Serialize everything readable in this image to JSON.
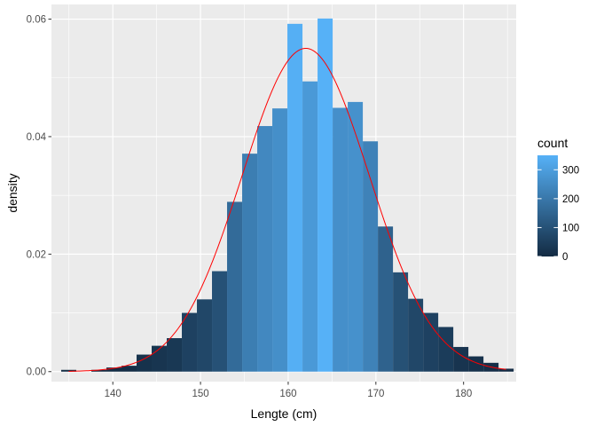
{
  "chart_data": {
    "type": "bar",
    "xlabel": "Lengte (cm)",
    "ylabel": "density",
    "xlim": [
      133,
      186
    ],
    "ylim": [
      -0.0017,
      0.0625
    ],
    "x_ticks": [
      140,
      150,
      160,
      170,
      180
    ],
    "y_ticks": [
      0.0,
      0.02,
      0.04,
      0.06
    ],
    "y_tick_labels": [
      "0.00",
      "0.02",
      "0.04",
      "0.06"
    ],
    "grid": true,
    "background_color": "#ebebeb",
    "bin_width": 1.72,
    "bins": [
      {
        "x": 134.97,
        "density": 0.0003,
        "count": 2
      },
      {
        "x": 138.41,
        "density": 0.0003,
        "count": 2
      },
      {
        "x": 140.13,
        "density": 0.0007,
        "count": 4
      },
      {
        "x": 141.85,
        "density": 0.001,
        "count": 6
      },
      {
        "x": 143.57,
        "density": 0.0029,
        "count": 17
      },
      {
        "x": 145.29,
        "density": 0.0044,
        "count": 26
      },
      {
        "x": 147.01,
        "density": 0.0057,
        "count": 33
      },
      {
        "x": 148.73,
        "density": 0.01,
        "count": 58
      },
      {
        "x": 150.45,
        "density": 0.0123,
        "count": 72
      },
      {
        "x": 152.17,
        "density": 0.0171,
        "count": 100
      },
      {
        "x": 153.89,
        "density": 0.0289,
        "count": 168
      },
      {
        "x": 155.61,
        "density": 0.0371,
        "count": 216
      },
      {
        "x": 157.33,
        "density": 0.0418,
        "count": 243
      },
      {
        "x": 159.05,
        "density": 0.0448,
        "count": 261
      },
      {
        "x": 160.77,
        "density": 0.0592,
        "count": 345
      },
      {
        "x": 162.49,
        "density": 0.0494,
        "count": 288
      },
      {
        "x": 164.21,
        "density": 0.0601,
        "count": 350
      },
      {
        "x": 165.93,
        "density": 0.0449,
        "count": 262
      },
      {
        "x": 167.65,
        "density": 0.0459,
        "count": 267
      },
      {
        "x": 169.37,
        "density": 0.0392,
        "count": 228
      },
      {
        "x": 171.09,
        "density": 0.0247,
        "count": 144
      },
      {
        "x": 172.81,
        "density": 0.0169,
        "count": 98
      },
      {
        "x": 174.53,
        "density": 0.0124,
        "count": 72
      },
      {
        "x": 176.25,
        "density": 0.01,
        "count": 58
      },
      {
        "x": 177.97,
        "density": 0.0076,
        "count": 44
      },
      {
        "x": 179.69,
        "density": 0.0042,
        "count": 24
      },
      {
        "x": 181.41,
        "density": 0.0026,
        "count": 15
      },
      {
        "x": 183.13,
        "density": 0.0015,
        "count": 9
      },
      {
        "x": 184.85,
        "density": 0.0005,
        "count": 3
      }
    ],
    "density_curve": {
      "color": "#ff0000",
      "mean": 162.0,
      "sd": 7.25
    },
    "fill_scale": {
      "low_color": "#132b43",
      "high_color": "#56b1f7",
      "min": 0,
      "max": 350
    },
    "legend": {
      "title": "count",
      "position": "right",
      "breaks": [
        0,
        100,
        200,
        300
      ],
      "break_labels": [
        "0",
        "100",
        "200",
        "300"
      ]
    }
  }
}
